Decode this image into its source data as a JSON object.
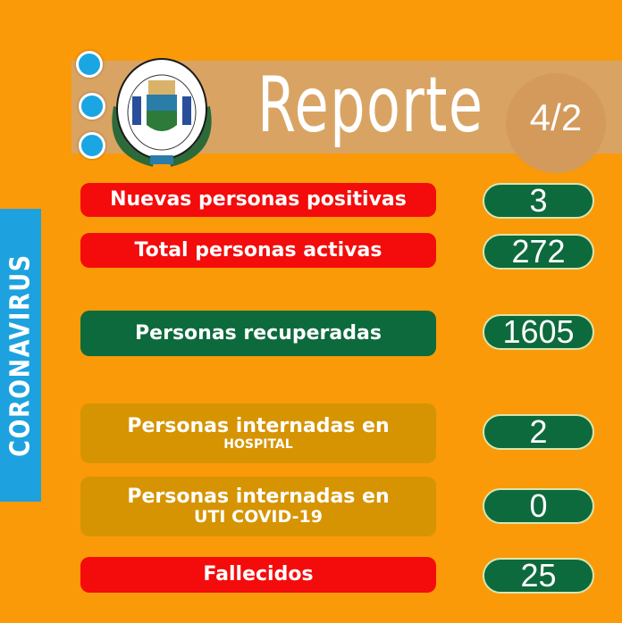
{
  "header": {
    "title": "Reporte",
    "date": "4/2",
    "logo_text": "MUNICIPALIDAD DE SUNCHALES · PROVINCIA DE SANTA FE"
  },
  "side_label": "CORONAVIRUS",
  "colors": {
    "background": "#FA9A08",
    "red": "#F40B0B",
    "green": "#0D6A3C",
    "tan": "#D69402",
    "blue": "#1DA2DF"
  },
  "rows": [
    {
      "label": "Nuevas personas positivas",
      "value": "3"
    },
    {
      "label": "Total personas activas",
      "value": "272"
    },
    {
      "label": "Personas recuperadas",
      "value": "1605"
    },
    {
      "label": "Personas internadas en",
      "sublabel": "HOSPITAL",
      "value": "2"
    },
    {
      "label": "Personas internadas en",
      "sublabel": "UTI COVID-19",
      "value": "0"
    },
    {
      "label": "Fallecidos",
      "value": "25"
    }
  ]
}
